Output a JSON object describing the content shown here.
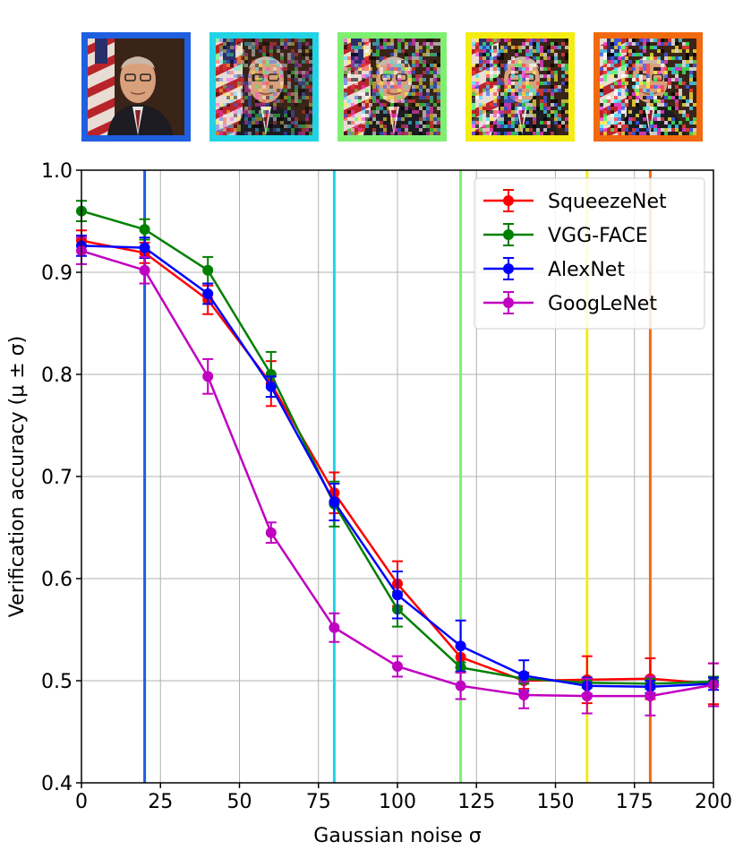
{
  "thumbnails": [
    {
      "noise_sigma": 20,
      "border_color": "#1f5fe0",
      "noise_level": 0.0
    },
    {
      "noise_sigma": 80,
      "border_color": "#22d3e6",
      "noise_level": 0.35
    },
    {
      "noise_sigma": 120,
      "border_color": "#7fef72",
      "noise_level": 0.6
    },
    {
      "noise_sigma": 160,
      "border_color": "#f5ec12",
      "noise_level": 0.8
    },
    {
      "noise_sigma": 180,
      "border_color": "#f26a0f",
      "noise_level": 0.95
    }
  ],
  "chart_data": {
    "type": "line",
    "title": "",
    "xlabel": "Gaussian noise σ",
    "ylabel": "Verification accuracy (μ ± σ)",
    "xlim": [
      0,
      200
    ],
    "ylim": [
      0.4,
      1.0
    ],
    "xticks": [
      0,
      25,
      50,
      75,
      100,
      125,
      150,
      175,
      200
    ],
    "xtick_labels": [
      "0",
      "25",
      "50",
      "75",
      "100",
      "125",
      "150",
      "175",
      "200"
    ],
    "yticks": [
      0.4,
      0.5,
      0.6,
      0.7,
      0.8,
      0.9,
      1.0
    ],
    "ytick_labels": [
      "0.4",
      "0.5",
      "0.6",
      "0.7",
      "0.8",
      "0.9",
      "1.0"
    ],
    "grid": true,
    "legend_position": "top-right",
    "x": [
      0,
      20,
      40,
      60,
      80,
      100,
      120,
      140,
      160,
      180,
      200
    ],
    "vertical_lines": [
      {
        "x": 20,
        "color": "#1f5fe0"
      },
      {
        "x": 80,
        "color": "#22d3e6"
      },
      {
        "x": 120,
        "color": "#7fef72"
      },
      {
        "x": 160,
        "color": "#f5ec12"
      },
      {
        "x": 180,
        "color": "#f26a0f"
      }
    ],
    "series": [
      {
        "name": "SqueezeNet",
        "color": "#ff0000",
        "values": [
          0.931,
          0.919,
          0.873,
          0.791,
          0.684,
          0.595,
          0.523,
          0.5,
          0.501,
          0.502,
          0.497
        ],
        "errors": [
          0.01,
          0.01,
          0.014,
          0.022,
          0.02,
          0.022,
          0.01,
          0.008,
          0.023,
          0.02,
          0.02
        ]
      },
      {
        "name": "VGG-FACE",
        "color": "#008000",
        "values": [
          0.96,
          0.942,
          0.902,
          0.8,
          0.673,
          0.57,
          0.513,
          0.502,
          0.498,
          0.497,
          0.499
        ],
        "errors": [
          0.01,
          0.01,
          0.013,
          0.022,
          0.022,
          0.017,
          0.005,
          0.005,
          0.005,
          0.005,
          0.005
        ]
      },
      {
        "name": "AlexNet",
        "color": "#0000ff",
        "values": [
          0.926,
          0.924,
          0.879,
          0.788,
          0.675,
          0.584,
          0.534,
          0.505,
          0.495,
          0.494,
          0.497
        ],
        "errors": [
          0.01,
          0.01,
          0.01,
          0.01,
          0.018,
          0.023,
          0.025,
          0.015,
          0.008,
          0.006,
          0.006
        ]
      },
      {
        "name": "GoogLeNet",
        "color": "#c000c0",
        "values": [
          0.921,
          0.902,
          0.798,
          0.645,
          0.552,
          0.514,
          0.495,
          0.486,
          0.485,
          0.485,
          0.496
        ],
        "errors": [
          0.013,
          0.013,
          0.017,
          0.01,
          0.014,
          0.01,
          0.013,
          0.013,
          0.017,
          0.019,
          0.021
        ]
      }
    ]
  }
}
